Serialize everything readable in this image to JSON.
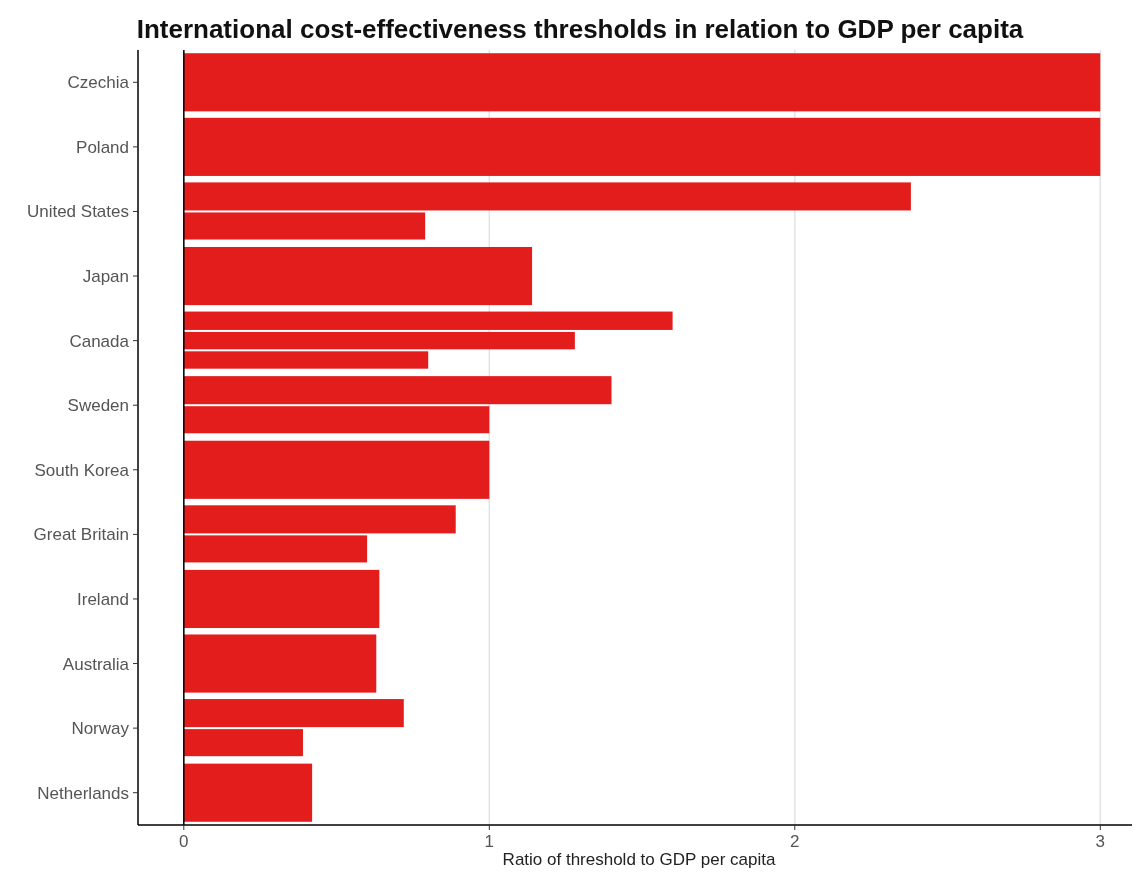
{
  "chart_data": {
    "type": "bar",
    "orientation": "horizontal",
    "title": "International cost-effectiveness thresholds in relation to GDP per capita",
    "xlabel": "Ratio of threshold to GDP per capita",
    "categories": [
      "Czechia",
      "Poland",
      "United States",
      "Japan",
      "Canada",
      "Sweden",
      "South Korea",
      "Great Britain",
      "Ireland",
      "Australia",
      "Norway",
      "Netherlands"
    ],
    "series": [
      {
        "color": "#e31c1c",
        "values": [
          3.0,
          3.0,
          2.38,
          1.14,
          1.6,
          1.4,
          1.0,
          0.89,
          0.64,
          0.63,
          0.72,
          0.42
        ]
      },
      {
        "color": "#e31c1c",
        "values": [
          null,
          null,
          0.79,
          null,
          1.28,
          1.0,
          null,
          0.6,
          null,
          null,
          0.39,
          null
        ]
      },
      {
        "color": "#e31c1c",
        "values": [
          null,
          null,
          null,
          null,
          0.8,
          null,
          null,
          null,
          null,
          null,
          null,
          null
        ]
      }
    ],
    "xlim": [
      -0.15,
      3.13
    ],
    "xticks": [
      0,
      1,
      2,
      3
    ],
    "grid": "x",
    "ref_lines": [
      {
        "axis": "x",
        "value": 0,
        "color": "#000000"
      }
    ]
  }
}
